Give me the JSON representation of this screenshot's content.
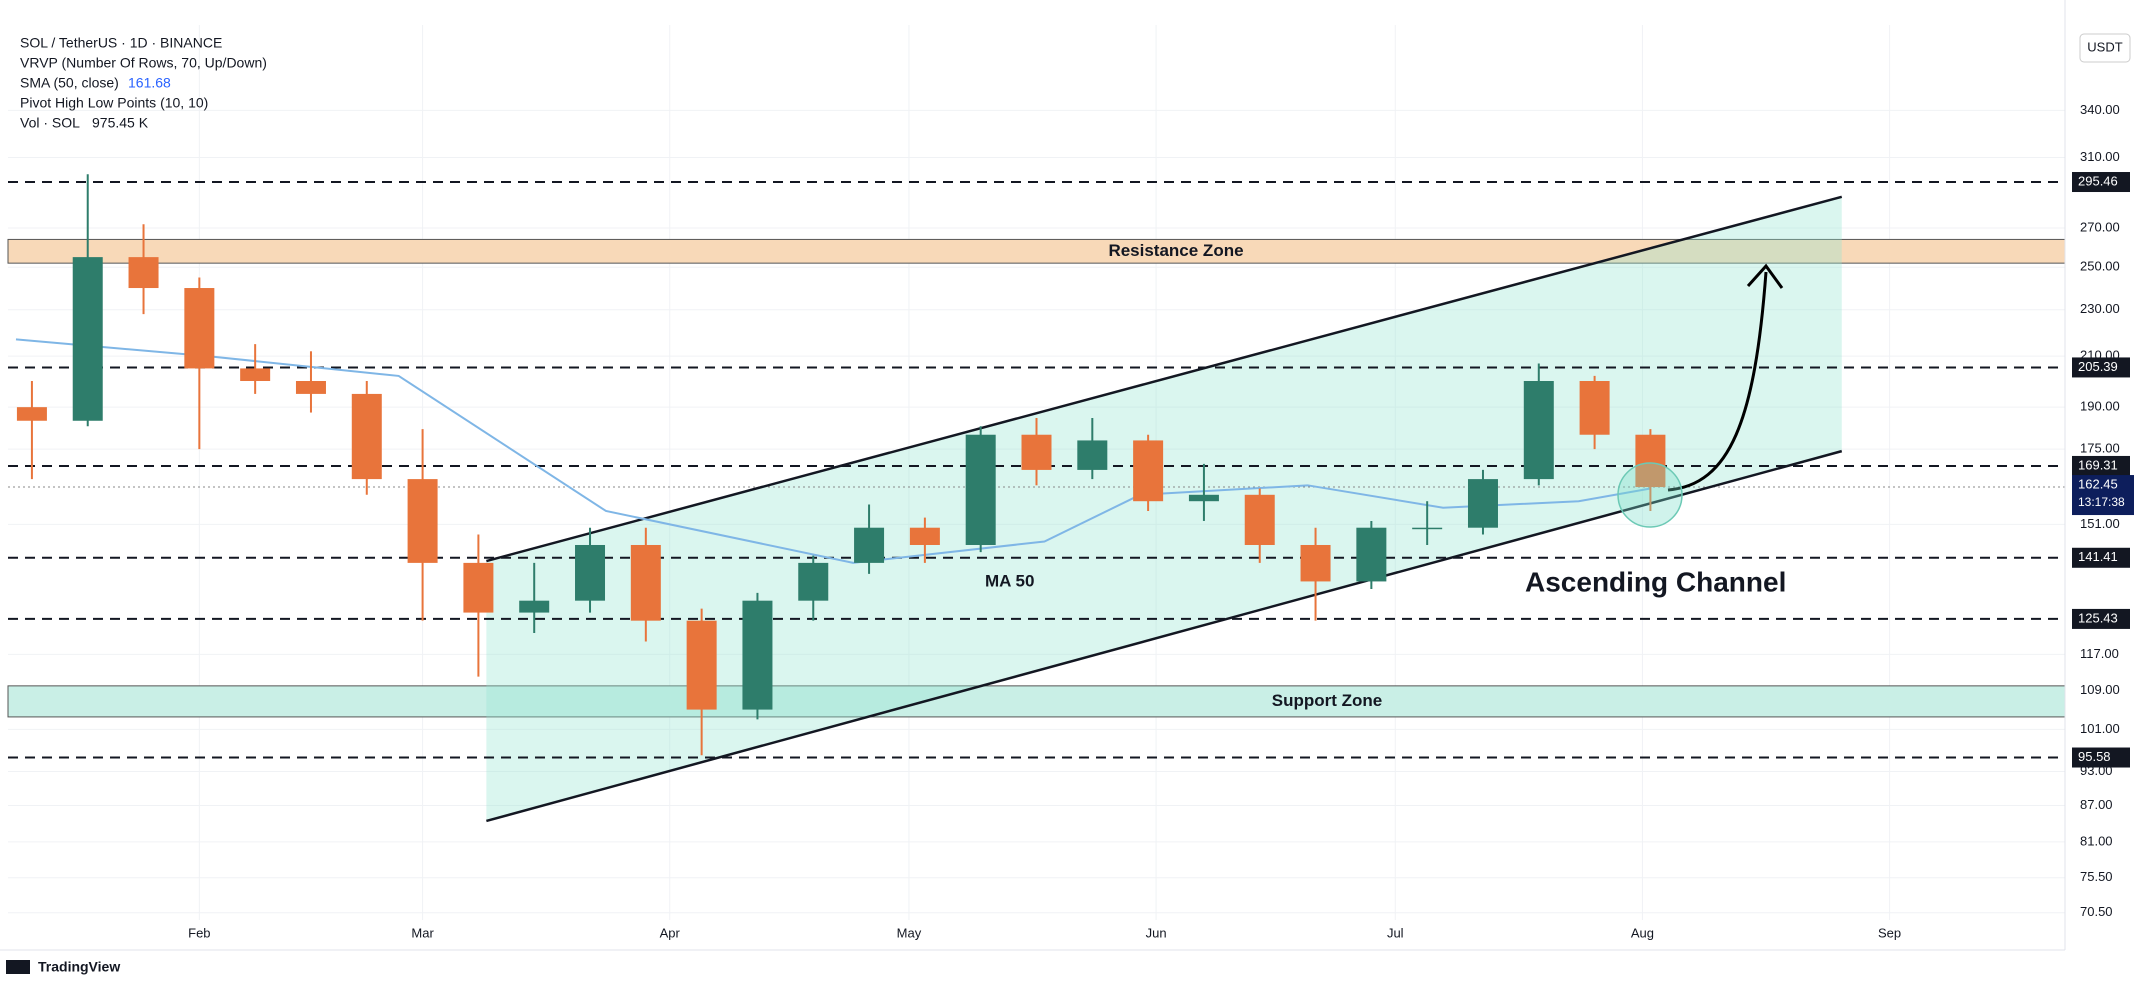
{
  "chart_data": {
    "type": "candlestick",
    "title": "SOL / TetherUS · 1D · BINANCE",
    "info_lines": [
      "VRVP (Number Of Rows, 70, Up/Down)",
      "Pivot High Low Points (10, 10)"
    ],
    "sma_label": "SMA (50, close)",
    "sma_value": 161.68,
    "vol_label": "Vol · SOL",
    "vol_value": "975.45 K",
    "currency": "USDT",
    "brand": "TradingView",
    "log_scale": true,
    "xlim": [
      7,
      265
    ],
    "ylim": [
      69.5,
      402
    ],
    "xticks": [
      {
        "value": 31,
        "label": "Feb"
      },
      {
        "value": 59,
        "label": "Mar"
      },
      {
        "value": 90,
        "label": "Apr"
      },
      {
        "value": 120,
        "label": "May"
      },
      {
        "value": 151,
        "label": "Jun"
      },
      {
        "value": 181,
        "label": "Jul"
      },
      {
        "value": 212,
        "label": "Aug"
      },
      {
        "value": 243,
        "label": "Sep"
      }
    ],
    "yticks": [
      {
        "value": 340,
        "label": "340.00"
      },
      {
        "value": 310,
        "label": "310.00"
      },
      {
        "value": 270,
        "label": "270.00"
      },
      {
        "value": 250,
        "label": "250.00"
      },
      {
        "value": 230,
        "label": "230.00"
      },
      {
        "value": 210,
        "label": "210.00"
      },
      {
        "value": 190,
        "label": "190.00"
      },
      {
        "value": 175,
        "label": "175.00"
      },
      {
        "value": 151,
        "label": "151.00"
      },
      {
        "value": 117,
        "label": "117.00"
      },
      {
        "value": 109,
        "label": "109.00"
      },
      {
        "value": 101,
        "label": "101.00"
      },
      {
        "value": 93,
        "label": "93.00"
      },
      {
        "value": 87,
        "label": "87.00"
      },
      {
        "value": 81,
        "label": "81.00"
      },
      {
        "value": 75.5,
        "label": "75.50"
      },
      {
        "value": 70.5,
        "label": "70.50"
      }
    ],
    "up_color": "#2e7d6b",
    "down_color": "#e8743b",
    "candles": {
      "x": [
        10,
        17,
        24,
        31,
        38,
        45,
        52,
        59,
        66,
        73,
        80,
        87,
        94,
        101,
        108,
        115,
        122,
        129,
        136,
        143,
        150,
        157,
        164,
        171,
        178,
        185,
        192,
        199,
        206,
        213
      ],
      "open": [
        190,
        185,
        255,
        240,
        205,
        200,
        195,
        165,
        140,
        127,
        130,
        145,
        125,
        105,
        130,
        140,
        150,
        145,
        180,
        168,
        178,
        158,
        160,
        145,
        135,
        150,
        150,
        165,
        200,
        180
      ],
      "high": [
        200,
        300,
        272,
        245,
        215,
        212,
        200,
        182,
        148,
        140,
        150,
        150,
        128,
        132,
        142,
        157,
        153,
        183,
        186,
        186,
        180,
        170,
        162,
        150,
        152,
        158,
        168,
        207,
        202,
        182
      ],
      "low": [
        165,
        183,
        228,
        175,
        195,
        188,
        160,
        125,
        112,
        122,
        127,
        120,
        96,
        103,
        125,
        137,
        140,
        143,
        163,
        165,
        155,
        152,
        140,
        125,
        133,
        145,
        148,
        163,
        175,
        155
      ],
      "close": [
        185,
        255,
        240,
        205,
        200,
        195,
        165,
        140,
        127,
        130,
        145,
        125,
        105,
        130,
        140,
        150,
        145,
        180,
        168,
        178,
        158,
        160,
        145,
        135,
        150,
        150,
        165,
        200,
        180,
        162.45
      ]
    },
    "ma": {
      "name": "MA 50",
      "color": "#7fb6e6",
      "x": [
        8,
        32,
        56,
        82,
        113,
        137,
        149,
        170,
        187,
        204,
        213
      ],
      "values": [
        217,
        210,
        202,
        155,
        140,
        146,
        160,
        163,
        156,
        158,
        162
      ]
    },
    "channel": {
      "name": "Ascending Channel",
      "x": [
        67,
        237
      ],
      "upper": [
        140.5,
        287
      ],
      "lower": [
        84.4,
        174.3
      ]
    },
    "zones": [
      {
        "name": "Resistance Zone",
        "range": [
          252,
          264
        ],
        "color": "#f8d9b8"
      },
      {
        "name": "Support Zone",
        "range": [
          103.5,
          110
        ],
        "color": "#c9efe6"
      }
    ],
    "levels": [
      295.46,
      205.39,
      169.31,
      141.41,
      125.43,
      95.58
    ],
    "last_price": 162.45,
    "countdown": "13:17:38"
  }
}
